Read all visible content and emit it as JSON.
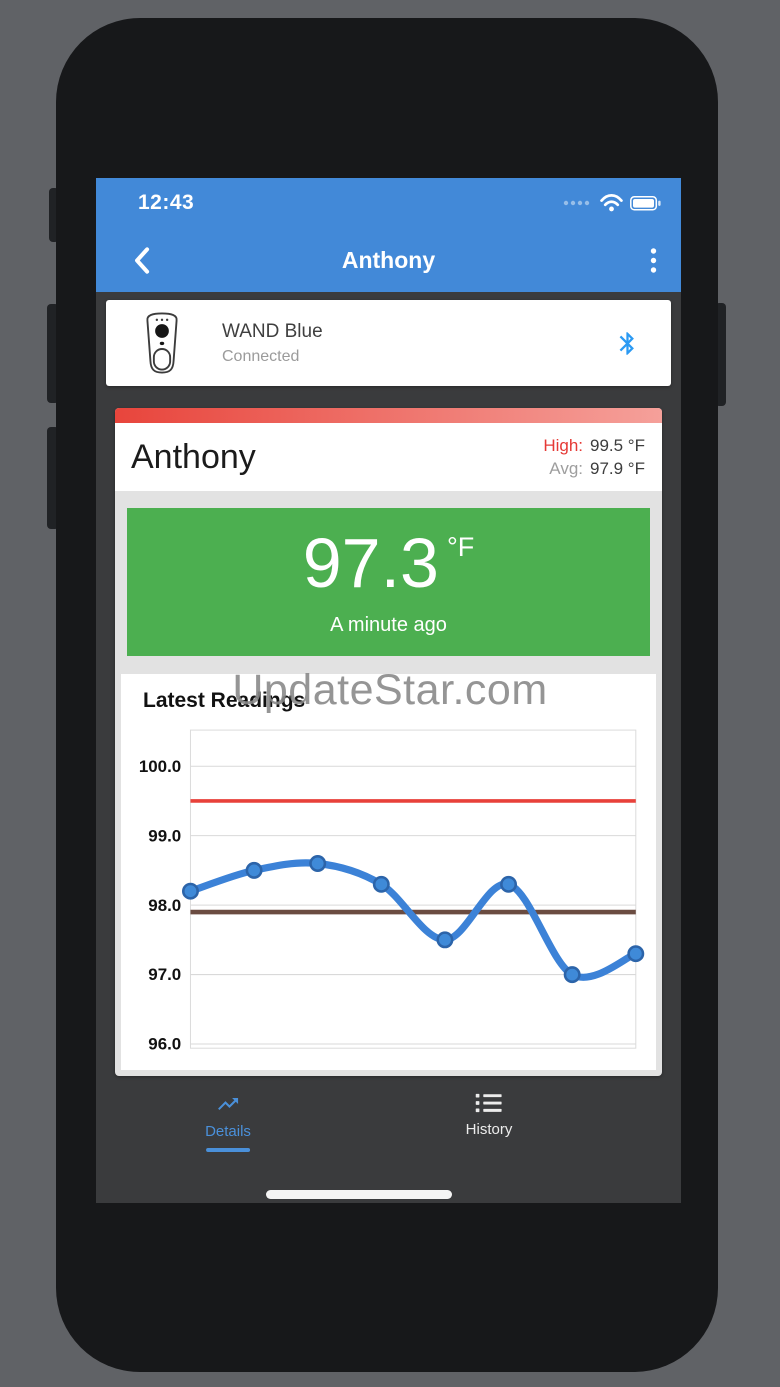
{
  "status_bar": {
    "time": "12:43"
  },
  "nav_bar": {
    "title": "Anthony"
  },
  "device_card": {
    "name": "WAND Blue",
    "status": "Connected",
    "bluetooth_color": "#2b9af3"
  },
  "patient_card": {
    "name": "Anthony",
    "high_label": "High:",
    "high_value": "99.5 °F",
    "avg_label": "Avg:",
    "avg_value": "97.9 °F",
    "high_color": "#e53935",
    "accent_bar_colors": [
      "#e8453c",
      "#f5a09a"
    ]
  },
  "current_reading": {
    "value": "97.3",
    "unit": "°F",
    "timestamp": "A minute ago",
    "bg_color": "#4caf50"
  },
  "chart_card": {
    "title": "Latest Readings"
  },
  "chart_data": {
    "type": "line",
    "title": "Latest Readings",
    "x_labels": [],
    "values": [
      98.2,
      98.5,
      98.6,
      98.3,
      97.5,
      98.3,
      97.0,
      97.3
    ],
    "yticks": [
      100.0,
      99.0,
      98.0,
      97.0,
      96.0
    ],
    "ylim": [
      95.94,
      100.52
    ],
    "grid": true,
    "legend": false,
    "series_color": "#3c82d7",
    "marker_fill": "#3f8ad8",
    "marker_stroke": "#2c64a9",
    "grid_color": "#d9d9d9",
    "tick_color": "#111111",
    "reference_lines": [
      {
        "name": "high-threshold",
        "value": 99.5,
        "color": "#e8413a",
        "width": 3.5
      },
      {
        "name": "average",
        "value": 97.9,
        "color": "#6b4c41",
        "width": 4.5
      }
    ]
  },
  "tab_bar": {
    "tabs": [
      {
        "label": "Details",
        "active": true
      },
      {
        "label": "History",
        "active": false
      }
    ],
    "active_color": "#4a90da",
    "inactive_color": "#ececec"
  },
  "watermark": "UpdateStar.com"
}
